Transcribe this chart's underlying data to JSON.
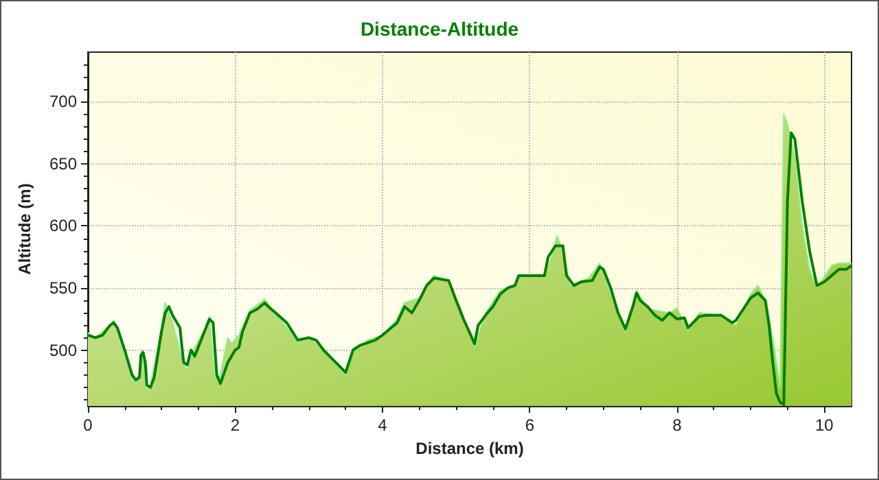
{
  "chart_data": {
    "type": "line",
    "title": "Distance-Altitude",
    "xlabel": "Distance (km)",
    "ylabel": "Altitude (m)",
    "xlim": [
      0,
      10.37
    ],
    "xticks": [
      0,
      2,
      4,
      6,
      8,
      10
    ],
    "ylim": [
      455,
      740
    ],
    "yticks": [
      500,
      550,
      600,
      650,
      700
    ],
    "grid": true,
    "marker": "none",
    "line_style": "solid",
    "series": [
      {
        "type": "area",
        "color": "#90ee90",
        "x": [
          0,
          0.1,
          0.3,
          0.35,
          0.5,
          0.62,
          0.7,
          0.73,
          0.8,
          0.85,
          1.0,
          1.05,
          1.15,
          1.3,
          1.35,
          1.45,
          1.6,
          1.65,
          1.72,
          1.78,
          1.9,
          1.95,
          2.05,
          2.2,
          2.4,
          2.5,
          2.7,
          2.85,
          3.0,
          3.2,
          3.5,
          3.6,
          3.8,
          4.0,
          4.2,
          4.3,
          4.5,
          4.7,
          4.9,
          5.05,
          5.25,
          5.4,
          5.6,
          5.8,
          5.85,
          6.2,
          6.3,
          6.37,
          6.45,
          6.55,
          6.8,
          6.95,
          7.1,
          7.3,
          7.45,
          7.6,
          7.9,
          8.0,
          8.15,
          8.3,
          8.6,
          8.8,
          9.0,
          9.1,
          9.2,
          9.3,
          9.4,
          9.45,
          9.5,
          9.6,
          9.7,
          9.8,
          9.9,
          10.1,
          10.2,
          10.37
        ],
        "values": [
          514,
          510,
          520,
          524,
          497,
          474,
          480,
          500,
          468,
          472,
          518,
          538,
          522,
          488,
          484,
          502,
          518,
          527,
          480,
          475,
          510,
          505,
          512,
          532,
          541,
          533,
          518,
          506,
          510,
          500,
          480,
          498,
          508,
          512,
          525,
          538,
          542,
          560,
          555,
          535,
          502,
          530,
          548,
          553,
          560,
          560,
          576,
          592,
          580,
          552,
          558,
          570,
          545,
          515,
          548,
          533,
          530,
          534,
          516,
          530,
          528,
          520,
          545,
          552,
          540,
          510,
          470,
          690,
          682,
          655,
          600,
          565,
          550,
          568,
          570,
          570
        ]
      },
      {
        "type": "line",
        "color": "#008000",
        "x": [
          0,
          0.1,
          0.2,
          0.3,
          0.35,
          0.4,
          0.5,
          0.6,
          0.65,
          0.7,
          0.72,
          0.75,
          0.78,
          0.8,
          0.85,
          0.9,
          1.0,
          1.05,
          1.1,
          1.15,
          1.25,
          1.3,
          1.35,
          1.4,
          1.45,
          1.55,
          1.65,
          1.7,
          1.75,
          1.8,
          1.9,
          2.0,
          2.05,
          2.1,
          2.2,
          2.3,
          2.4,
          2.45,
          2.55,
          2.7,
          2.85,
          3.0,
          3.1,
          3.2,
          3.3,
          3.45,
          3.5,
          3.6,
          3.7,
          3.9,
          4.0,
          4.2,
          4.3,
          4.4,
          4.5,
          4.6,
          4.7,
          4.8,
          4.9,
          5.0,
          5.1,
          5.2,
          5.25,
          5.3,
          5.4,
          5.5,
          5.6,
          5.7,
          5.8,
          5.85,
          6.0,
          6.2,
          6.25,
          6.35,
          6.45,
          6.5,
          6.6,
          6.7,
          6.85,
          6.95,
          7.0,
          7.1,
          7.2,
          7.3,
          7.4,
          7.45,
          7.5,
          7.6,
          7.7,
          7.8,
          7.9,
          8.0,
          8.1,
          8.15,
          8.3,
          8.4,
          8.6,
          8.75,
          8.8,
          9.0,
          9.1,
          9.2,
          9.25,
          9.3,
          9.35,
          9.4,
          9.45,
          9.5,
          9.55,
          9.6,
          9.7,
          9.8,
          9.9,
          10.0,
          10.1,
          10.2,
          10.3,
          10.37
        ],
        "values": [
          512,
          510,
          512,
          520,
          522,
          518,
          500,
          480,
          476,
          478,
          496,
          498,
          490,
          472,
          470,
          478,
          515,
          530,
          535,
          528,
          518,
          490,
          488,
          500,
          495,
          510,
          525,
          522,
          480,
          473,
          490,
          500,
          502,
          515,
          530,
          533,
          538,
          535,
          530,
          522,
          508,
          510,
          508,
          500,
          494,
          485,
          482,
          500,
          504,
          508,
          512,
          522,
          535,
          530,
          540,
          552,
          558,
          557,
          556,
          540,
          525,
          512,
          505,
          520,
          528,
          535,
          545,
          550,
          552,
          560,
          560,
          560,
          575,
          584,
          584,
          560,
          552,
          555,
          556,
          567,
          565,
          550,
          530,
          517,
          535,
          546,
          540,
          535,
          528,
          524,
          530,
          525,
          526,
          518,
          527,
          528,
          528,
          522,
          524,
          542,
          546,
          540,
          520,
          490,
          465,
          458,
          456,
          620,
          675,
          670,
          620,
          580,
          552,
          555,
          560,
          565,
          565,
          568
        ]
      }
    ]
  }
}
